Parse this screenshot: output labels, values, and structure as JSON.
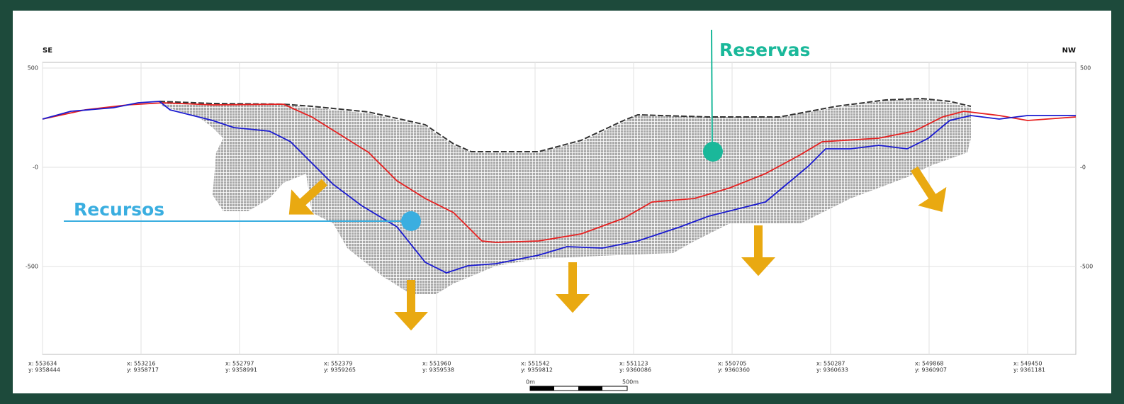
{
  "section": {
    "left_direction": "SE",
    "right_direction": "NW",
    "y_tick_labels": [
      "500",
      "-0",
      "-500"
    ],
    "coordinates": [
      {
        "x": "x: 553634",
        "y": "y: 9358444"
      },
      {
        "x": "x: 553216",
        "y": "y: 9358717"
      },
      {
        "x": "x: 552797",
        "y": "y: 9358991"
      },
      {
        "x": "x: 552379",
        "y": "y: 9359265"
      },
      {
        "x": "x: 551960",
        "y": "y: 9359538"
      },
      {
        "x": "x: 551542",
        "y": "y: 9359812"
      },
      {
        "x": "x: 551123",
        "y": "y: 9360086"
      },
      {
        "x": "x: 550705",
        "y": "y: 9360360"
      },
      {
        "x": "x: 550287",
        "y": "y: 9360633"
      },
      {
        "x": "x: 549868",
        "y": "y: 9360907"
      },
      {
        "x": "x: 549450",
        "y": "y: 9361181"
      }
    ],
    "scale_start": "0m",
    "scale_end": "500m"
  },
  "annotations": {
    "reserves": "Reservas",
    "resources": "Recursos"
  }
}
